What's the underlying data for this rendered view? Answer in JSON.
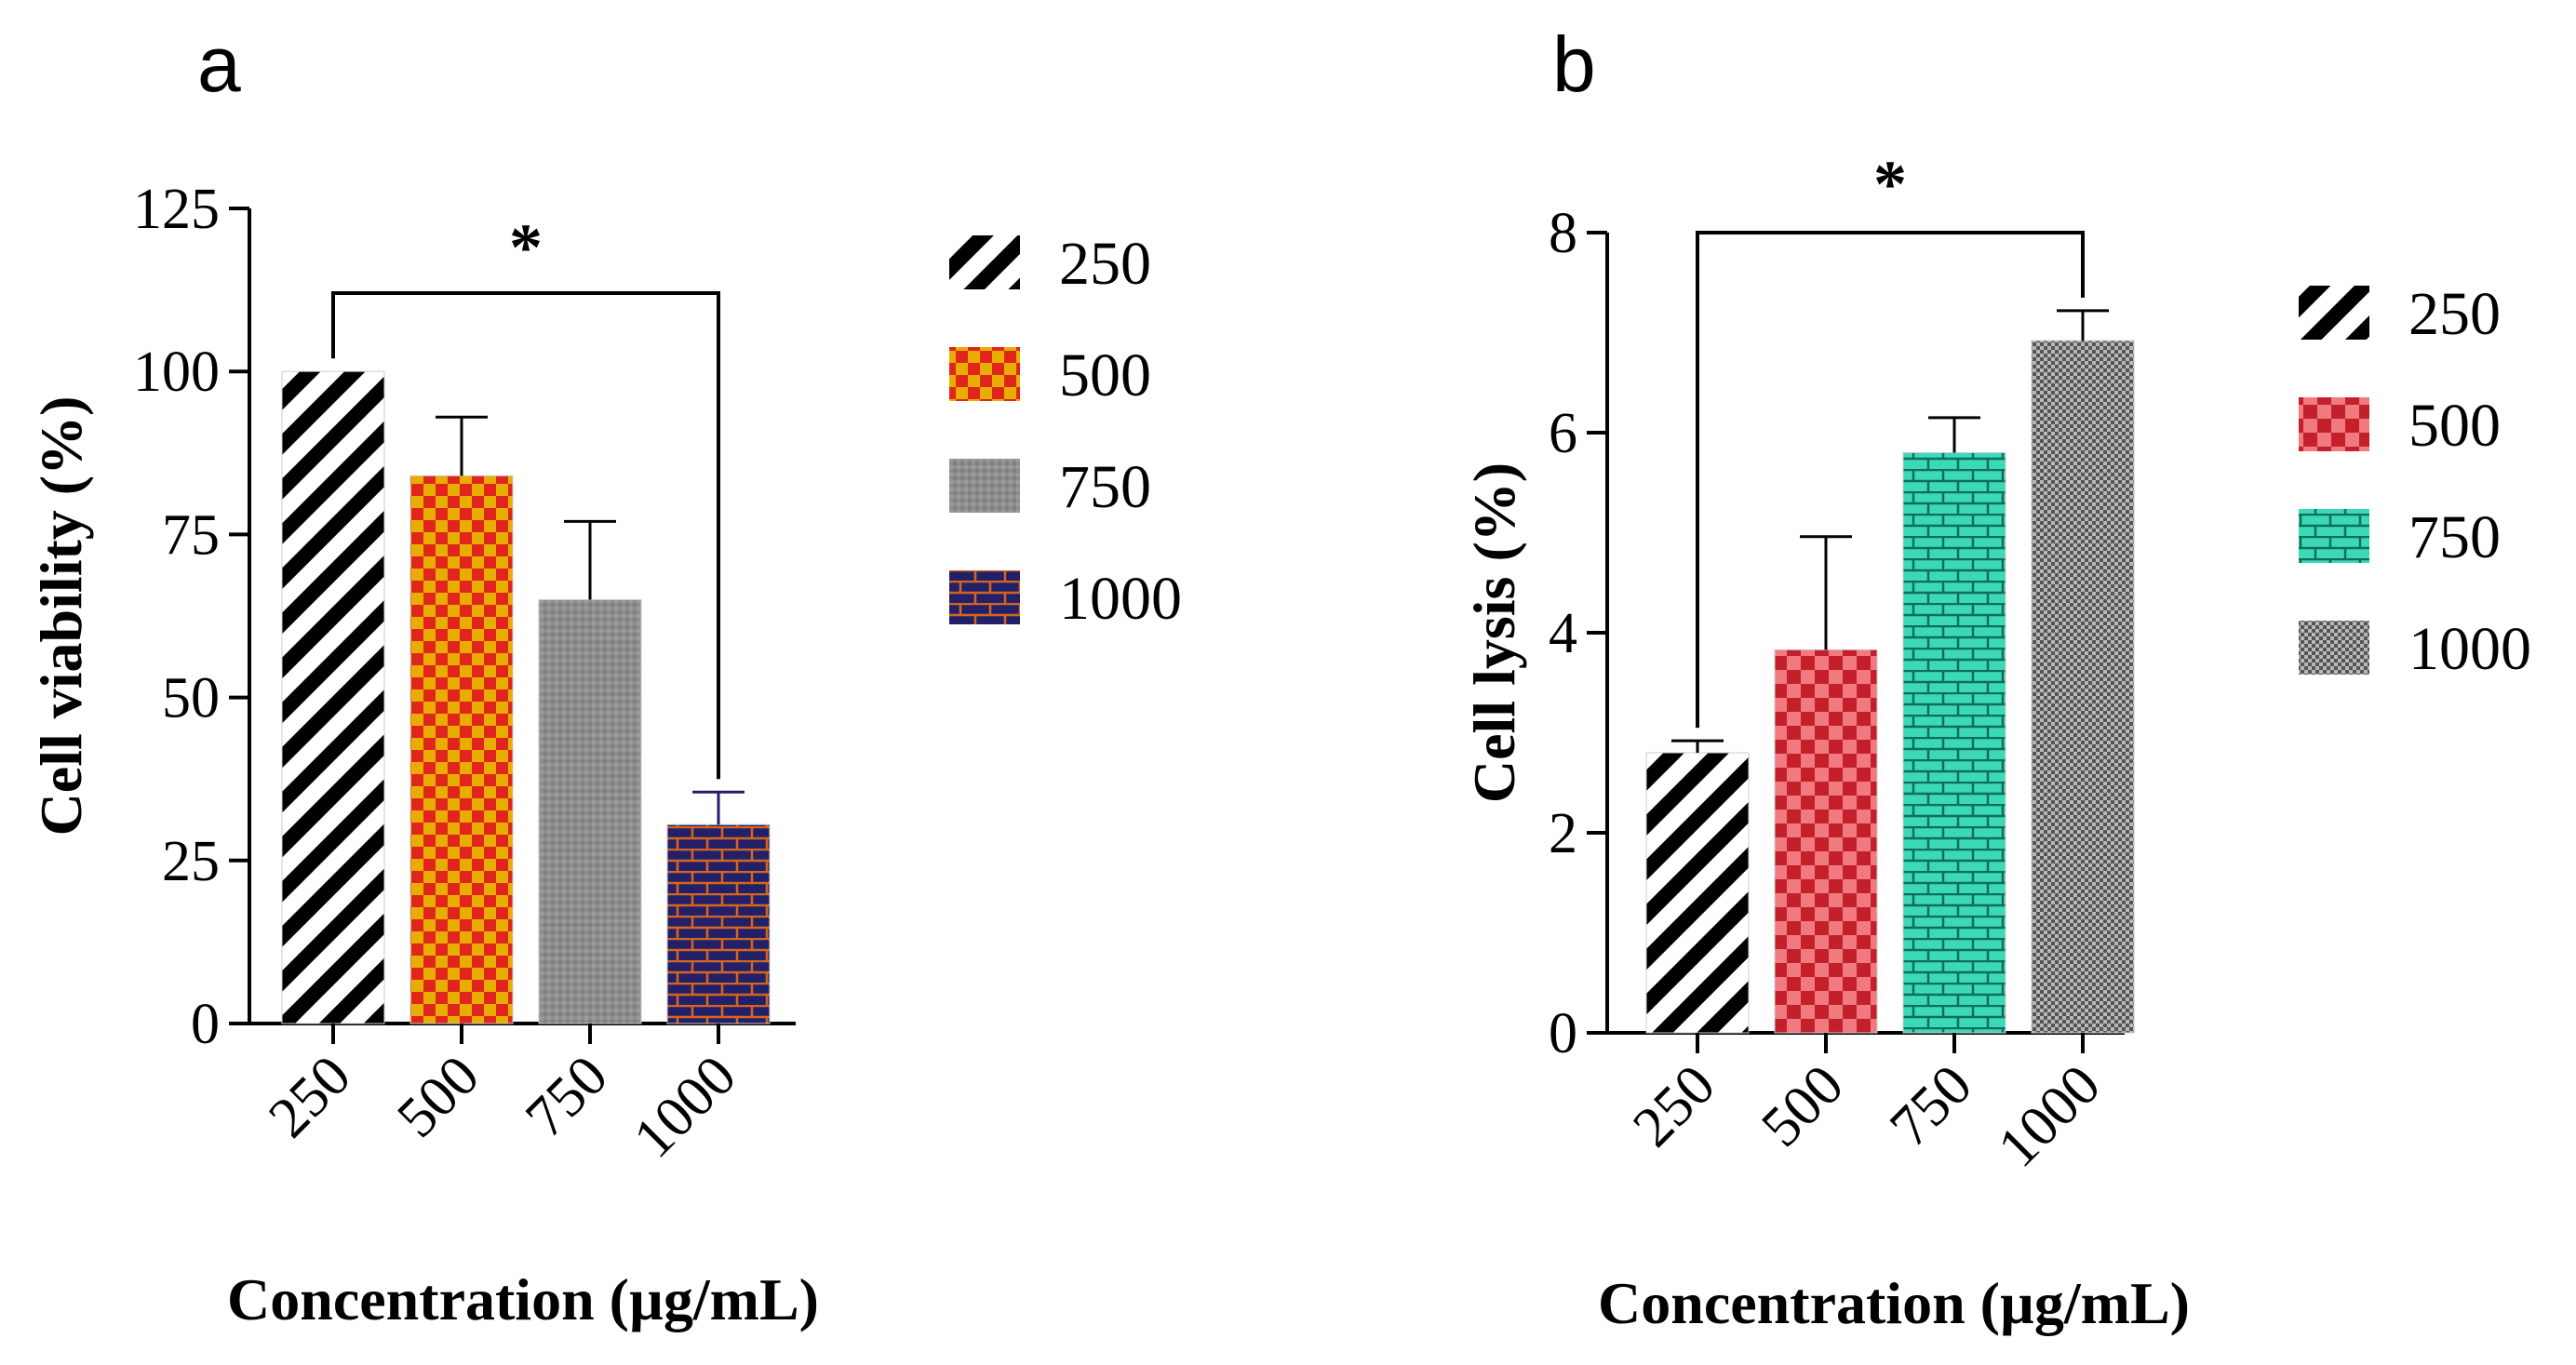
{
  "chart_data": [
    {
      "panel": "a",
      "type": "bar",
      "title": "",
      "xlabel": "Concentration (µg/mL)",
      "ylabel": "Cell viability (%)",
      "categories": [
        "250",
        "500",
        "750",
        "1000"
      ],
      "values": [
        100,
        84,
        65,
        30.5
      ],
      "errors": [
        0,
        9,
        12,
        5
      ],
      "ylim": [
        0,
        125
      ],
      "yticks": [
        "0",
        "25",
        "50",
        "75",
        "100",
        "125"
      ],
      "legend": [
        "250",
        "500",
        "750",
        "1000"
      ],
      "legend_position": "right",
      "significance": {
        "from": "250",
        "to": "1000",
        "label": "*"
      },
      "colors": [
        "#000000",
        "#e8ad00",
        "#8c8c8c",
        "#23206a"
      ]
    },
    {
      "panel": "b",
      "type": "bar",
      "title": "",
      "xlabel": "Concentration (µg/mL)",
      "ylabel": "Cell lysis (%)",
      "categories": [
        "250",
        "500",
        "750",
        "1000"
      ],
      "values": [
        2.8,
        3.83,
        5.8,
        6.92
      ],
      "errors": [
        0.12,
        1.13,
        0.35,
        0.3
      ],
      "ylim": [
        0,
        8
      ],
      "yticks": [
        "0",
        "2",
        "4",
        "6",
        "8"
      ],
      "legend": [
        "250",
        "500",
        "750",
        "1000"
      ],
      "legend_position": "right",
      "significance": {
        "from": "250",
        "to": "1000",
        "label": "*"
      },
      "colors": [
        "#000000",
        "#d8404a",
        "#3bd9b8",
        "#8c8c8c"
      ]
    }
  ]
}
